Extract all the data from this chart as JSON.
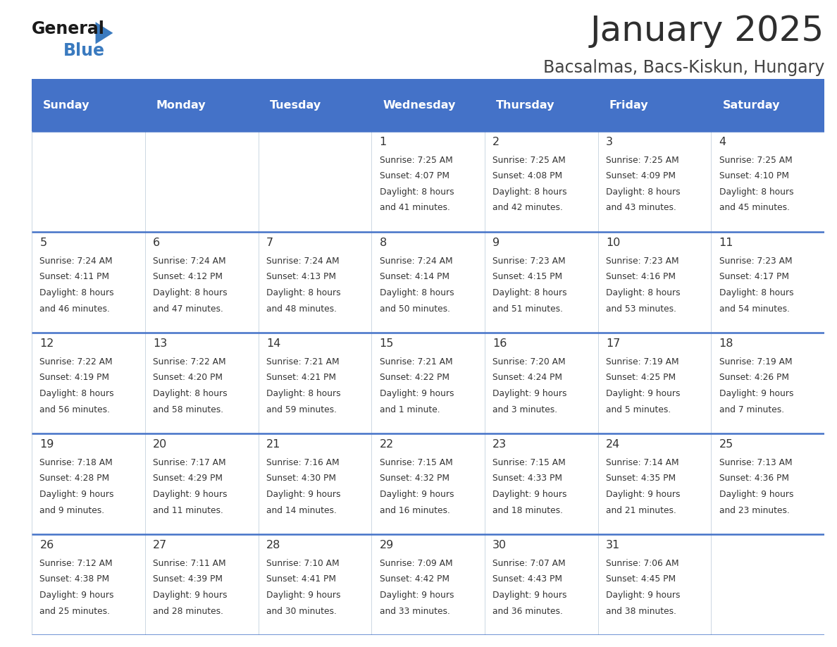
{
  "title": "January 2025",
  "subtitle": "Bacsalmas, Bacs-Kiskun, Hungary",
  "days_of_week": [
    "Sunday",
    "Monday",
    "Tuesday",
    "Wednesday",
    "Thursday",
    "Friday",
    "Saturday"
  ],
  "header_bg": "#4472c8",
  "header_text": "#ffffff",
  "cell_bg": "#ffffff",
  "border_color": "#4472c8",
  "cell_text_color": "#333333",
  "title_color": "#2e2e2e",
  "subtitle_color": "#444444",
  "calendar": [
    [
      {
        "day": "",
        "lines": []
      },
      {
        "day": "",
        "lines": []
      },
      {
        "day": "",
        "lines": []
      },
      {
        "day": "1",
        "lines": [
          "Sunrise: 7:25 AM",
          "Sunset: 4:07 PM",
          "Daylight: 8 hours",
          "and 41 minutes."
        ]
      },
      {
        "day": "2",
        "lines": [
          "Sunrise: 7:25 AM",
          "Sunset: 4:08 PM",
          "Daylight: 8 hours",
          "and 42 minutes."
        ]
      },
      {
        "day": "3",
        "lines": [
          "Sunrise: 7:25 AM",
          "Sunset: 4:09 PM",
          "Daylight: 8 hours",
          "and 43 minutes."
        ]
      },
      {
        "day": "4",
        "lines": [
          "Sunrise: 7:25 AM",
          "Sunset: 4:10 PM",
          "Daylight: 8 hours",
          "and 45 minutes."
        ]
      }
    ],
    [
      {
        "day": "5",
        "lines": [
          "Sunrise: 7:24 AM",
          "Sunset: 4:11 PM",
          "Daylight: 8 hours",
          "and 46 minutes."
        ]
      },
      {
        "day": "6",
        "lines": [
          "Sunrise: 7:24 AM",
          "Sunset: 4:12 PM",
          "Daylight: 8 hours",
          "and 47 minutes."
        ]
      },
      {
        "day": "7",
        "lines": [
          "Sunrise: 7:24 AM",
          "Sunset: 4:13 PM",
          "Daylight: 8 hours",
          "and 48 minutes."
        ]
      },
      {
        "day": "8",
        "lines": [
          "Sunrise: 7:24 AM",
          "Sunset: 4:14 PM",
          "Daylight: 8 hours",
          "and 50 minutes."
        ]
      },
      {
        "day": "9",
        "lines": [
          "Sunrise: 7:23 AM",
          "Sunset: 4:15 PM",
          "Daylight: 8 hours",
          "and 51 minutes."
        ]
      },
      {
        "day": "10",
        "lines": [
          "Sunrise: 7:23 AM",
          "Sunset: 4:16 PM",
          "Daylight: 8 hours",
          "and 53 minutes."
        ]
      },
      {
        "day": "11",
        "lines": [
          "Sunrise: 7:23 AM",
          "Sunset: 4:17 PM",
          "Daylight: 8 hours",
          "and 54 minutes."
        ]
      }
    ],
    [
      {
        "day": "12",
        "lines": [
          "Sunrise: 7:22 AM",
          "Sunset: 4:19 PM",
          "Daylight: 8 hours",
          "and 56 minutes."
        ]
      },
      {
        "day": "13",
        "lines": [
          "Sunrise: 7:22 AM",
          "Sunset: 4:20 PM",
          "Daylight: 8 hours",
          "and 58 minutes."
        ]
      },
      {
        "day": "14",
        "lines": [
          "Sunrise: 7:21 AM",
          "Sunset: 4:21 PM",
          "Daylight: 8 hours",
          "and 59 minutes."
        ]
      },
      {
        "day": "15",
        "lines": [
          "Sunrise: 7:21 AM",
          "Sunset: 4:22 PM",
          "Daylight: 9 hours",
          "and 1 minute."
        ]
      },
      {
        "day": "16",
        "lines": [
          "Sunrise: 7:20 AM",
          "Sunset: 4:24 PM",
          "Daylight: 9 hours",
          "and 3 minutes."
        ]
      },
      {
        "day": "17",
        "lines": [
          "Sunrise: 7:19 AM",
          "Sunset: 4:25 PM",
          "Daylight: 9 hours",
          "and 5 minutes."
        ]
      },
      {
        "day": "18",
        "lines": [
          "Sunrise: 7:19 AM",
          "Sunset: 4:26 PM",
          "Daylight: 9 hours",
          "and 7 minutes."
        ]
      }
    ],
    [
      {
        "day": "19",
        "lines": [
          "Sunrise: 7:18 AM",
          "Sunset: 4:28 PM",
          "Daylight: 9 hours",
          "and 9 minutes."
        ]
      },
      {
        "day": "20",
        "lines": [
          "Sunrise: 7:17 AM",
          "Sunset: 4:29 PM",
          "Daylight: 9 hours",
          "and 11 minutes."
        ]
      },
      {
        "day": "21",
        "lines": [
          "Sunrise: 7:16 AM",
          "Sunset: 4:30 PM",
          "Daylight: 9 hours",
          "and 14 minutes."
        ]
      },
      {
        "day": "22",
        "lines": [
          "Sunrise: 7:15 AM",
          "Sunset: 4:32 PM",
          "Daylight: 9 hours",
          "and 16 minutes."
        ]
      },
      {
        "day": "23",
        "lines": [
          "Sunrise: 7:15 AM",
          "Sunset: 4:33 PM",
          "Daylight: 9 hours",
          "and 18 minutes."
        ]
      },
      {
        "day": "24",
        "lines": [
          "Sunrise: 7:14 AM",
          "Sunset: 4:35 PM",
          "Daylight: 9 hours",
          "and 21 minutes."
        ]
      },
      {
        "day": "25",
        "lines": [
          "Sunrise: 7:13 AM",
          "Sunset: 4:36 PM",
          "Daylight: 9 hours",
          "and 23 minutes."
        ]
      }
    ],
    [
      {
        "day": "26",
        "lines": [
          "Sunrise: 7:12 AM",
          "Sunset: 4:38 PM",
          "Daylight: 9 hours",
          "and 25 minutes."
        ]
      },
      {
        "day": "27",
        "lines": [
          "Sunrise: 7:11 AM",
          "Sunset: 4:39 PM",
          "Daylight: 9 hours",
          "and 28 minutes."
        ]
      },
      {
        "day": "28",
        "lines": [
          "Sunrise: 7:10 AM",
          "Sunset: 4:41 PM",
          "Daylight: 9 hours",
          "and 30 minutes."
        ]
      },
      {
        "day": "29",
        "lines": [
          "Sunrise: 7:09 AM",
          "Sunset: 4:42 PM",
          "Daylight: 9 hours",
          "and 33 minutes."
        ]
      },
      {
        "day": "30",
        "lines": [
          "Sunrise: 7:07 AM",
          "Sunset: 4:43 PM",
          "Daylight: 9 hours",
          "and 36 minutes."
        ]
      },
      {
        "day": "31",
        "lines": [
          "Sunrise: 7:06 AM",
          "Sunset: 4:45 PM",
          "Daylight: 9 hours",
          "and 38 minutes."
        ]
      },
      {
        "day": "",
        "lines": []
      }
    ]
  ]
}
